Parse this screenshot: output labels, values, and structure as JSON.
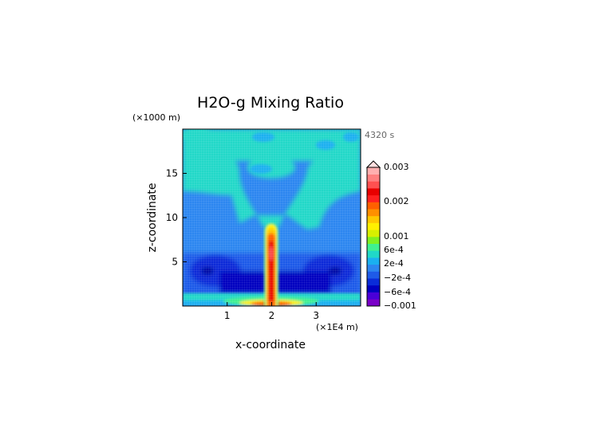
{
  "chart_data": {
    "type": "heatmap",
    "title": "H2O-g Mixing Ratio",
    "xlabel": "x-coordinate",
    "ylabel": "z-coordinate",
    "x_unit": "(×1E4 m)",
    "y_unit": "(×1000 m)",
    "time_label": "4320 s",
    "xlim": [
      0,
      4
    ],
    "ylim": [
      0,
      20
    ],
    "x_ticks": [
      1,
      2,
      3
    ],
    "y_ticks": [
      5,
      10,
      15
    ],
    "colorbar": {
      "colors": [
        "#7a00c8",
        "#4a00d8",
        "#0000c0",
        "#0a2cd8",
        "#1e5ae8",
        "#2c86f0",
        "#1ab0f0",
        "#20d8c8",
        "#40f090",
        "#80f020",
        "#d8f000",
        "#fff000",
        "#ffc800",
        "#ff9000",
        "#ff6000",
        "#ff2020",
        "#e80000",
        "#ff5050",
        "#ff8080",
        "#ffb0b0"
      ],
      "tick_labels": [
        "0.003",
        "0.002",
        "0.001",
        "6e-4",
        "2e-4",
        "−2e-4",
        "−6e-4",
        "−0.001"
      ]
    }
  }
}
